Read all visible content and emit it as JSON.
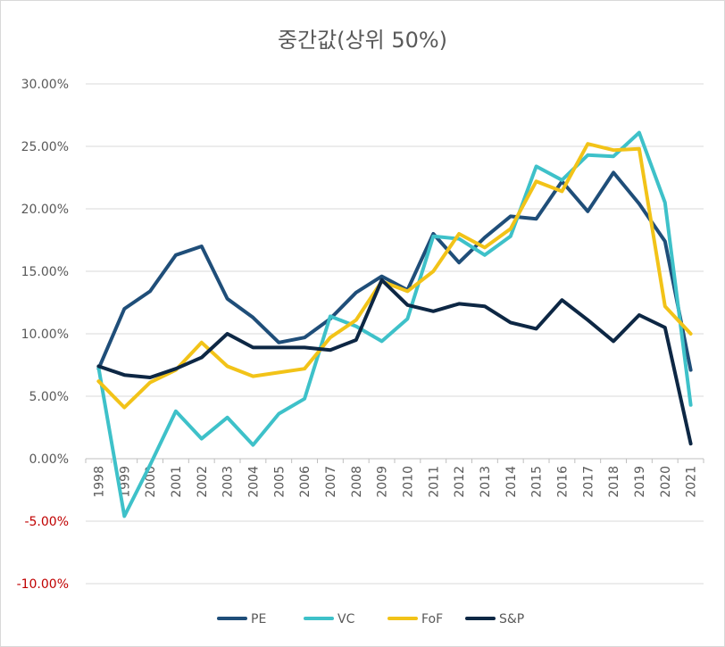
{
  "chart_data": {
    "type": "line",
    "title": "중간값(상위 50%)",
    "xlabel": "",
    "ylabel": "",
    "ylim": [
      -0.1,
      0.3
    ],
    "yticks": [
      0.3,
      0.25,
      0.2,
      0.15,
      0.1,
      0.05,
      0.0,
      -0.05,
      -0.1
    ],
    "ytick_labels": [
      "30.00%",
      "25.00%",
      "20.00%",
      "15.00%",
      "10.00%",
      "5.00%",
      "0.00%",
      "-5.00%",
      "-10.00%"
    ],
    "negative_tick_color": "#c00000",
    "grid": true,
    "legend_position": "bottom",
    "categories": [
      "1998",
      "1999",
      "2000",
      "2001",
      "2002",
      "2003",
      "2004",
      "2005",
      "2006",
      "2007",
      "2008",
      "2009",
      "2010",
      "2011",
      "2012",
      "2013",
      "2014",
      "2015",
      "2016",
      "2017",
      "2018",
      "2019",
      "2020",
      "2021"
    ],
    "series": [
      {
        "name": "PE",
        "color": "#1f4e79",
        "values": [
          0.072,
          0.12,
          0.134,
          0.163,
          0.17,
          0.128,
          0.113,
          0.093,
          0.097,
          0.112,
          0.133,
          0.146,
          0.135,
          0.18,
          0.157,
          0.177,
          0.194,
          0.192,
          0.222,
          0.198,
          0.229,
          0.204,
          0.174,
          0.071
        ]
      },
      {
        "name": "VC",
        "color": "#3ec1c9",
        "values": [
          0.073,
          -0.046,
          -0.005,
          0.038,
          0.016,
          0.033,
          0.011,
          0.036,
          0.048,
          0.114,
          0.106,
          0.094,
          0.112,
          0.178,
          0.176,
          0.163,
          0.178,
          0.234,
          0.223,
          0.243,
          0.242,
          0.261,
          0.205,
          0.043
        ]
      },
      {
        "name": "FoF",
        "color": "#f2c318",
        "values": [
          0.062,
          0.041,
          0.061,
          0.071,
          0.093,
          0.074,
          0.066,
          0.069,
          0.072,
          0.097,
          0.111,
          0.142,
          0.134,
          0.15,
          0.18,
          0.169,
          0.184,
          0.222,
          0.214,
          0.252,
          0.247,
          0.248,
          0.122,
          0.1
        ]
      },
      {
        "name": "S&P",
        "color": "#0d2744",
        "values": [
          0.074,
          0.067,
          0.065,
          0.072,
          0.081,
          0.1,
          0.089,
          0.089,
          0.089,
          0.087,
          0.095,
          0.143,
          0.123,
          0.118,
          0.124,
          0.122,
          0.109,
          0.104,
          0.127,
          0.111,
          0.094,
          0.115,
          0.105,
          0.012
        ]
      }
    ]
  }
}
